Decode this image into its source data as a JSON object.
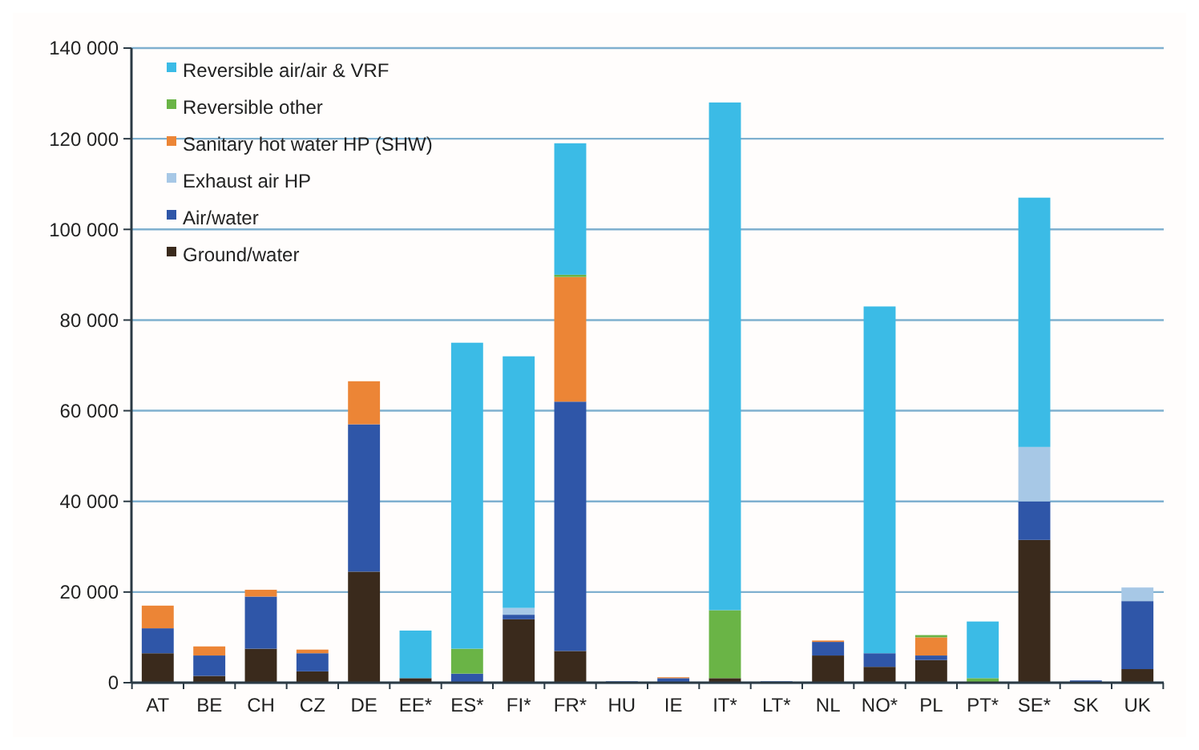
{
  "chart_data": {
    "type": "bar",
    "stacked": true,
    "grid": "y",
    "legend": "top left",
    "categories": [
      "AT",
      "BE",
      "CH",
      "CZ",
      "DE",
      "EE*",
      "ES*",
      "FI*",
      "FR*",
      "HU",
      "IE",
      "IT*",
      "LT*",
      "NL",
      "NO*",
      "PL",
      "PT*",
      "SE*",
      "SK",
      "UK"
    ],
    "ylim": [
      0,
      140000
    ],
    "yticks": [
      0,
      {
        "value": 20000,
        "label": "20 000"
      },
      {
        "value": 40000,
        "label": "40 000"
      },
      {
        "value": 60000,
        "label": "60 000"
      },
      {
        "value": 80000,
        "label": "80 000"
      },
      {
        "value": 100000,
        "label": "100 000"
      },
      {
        "value": 120000,
        "label": "120 000"
      },
      {
        "value": 140000,
        "label": "140 000"
      }
    ],
    "series": [
      {
        "name": "Ground/water",
        "color": "#3a2a1c",
        "values": [
          6500,
          1500,
          7500,
          2500,
          24500,
          1000,
          null,
          14000,
          7000,
          null,
          null,
          1000,
          null,
          6000,
          3500,
          5000,
          0,
          31500,
          0,
          3000
        ]
      },
      {
        "name": "Air/water",
        "color": "#2f56a8",
        "values": [
          5500,
          4500,
          11500,
          4000,
          32500,
          0,
          2000,
          1000,
          55000,
          300,
          1000,
          0,
          300,
          3000,
          3000,
          1000,
          0,
          8500,
          500,
          15000
        ]
      },
      {
        "name": "Exhaust air HP",
        "color": "#a7c8e6",
        "values": [
          0,
          0,
          0,
          0,
          0,
          0,
          0,
          1500,
          0,
          0,
          0,
          0,
          0,
          0,
          null,
          0,
          0,
          12000,
          0,
          3000
        ]
      },
      {
        "name": "Sanitary hot water HP (SHW)",
        "color": "#ec8536",
        "values": [
          5000,
          2000,
          1500,
          800,
          9500,
          0,
          0,
          0,
          27500,
          0,
          200,
          0,
          0,
          300,
          0,
          4000,
          0,
          0,
          0,
          0
        ]
      },
      {
        "name": "Reversible other",
        "color": "#6ab446",
        "values": [
          0,
          0,
          0,
          0,
          0,
          0,
          5500,
          0,
          500,
          0,
          0,
          15000,
          0,
          0,
          0,
          500,
          1000,
          0,
          0,
          0
        ]
      },
      {
        "name": "Reversible air/air & VRF",
        "color": "#3bbbe6",
        "values": [
          0,
          0,
          0,
          0,
          0,
          10500,
          67500,
          55500,
          29000,
          0,
          0,
          112000,
          0,
          0,
          76500,
          0,
          12500,
          55000,
          0,
          0
        ]
      }
    ]
  }
}
